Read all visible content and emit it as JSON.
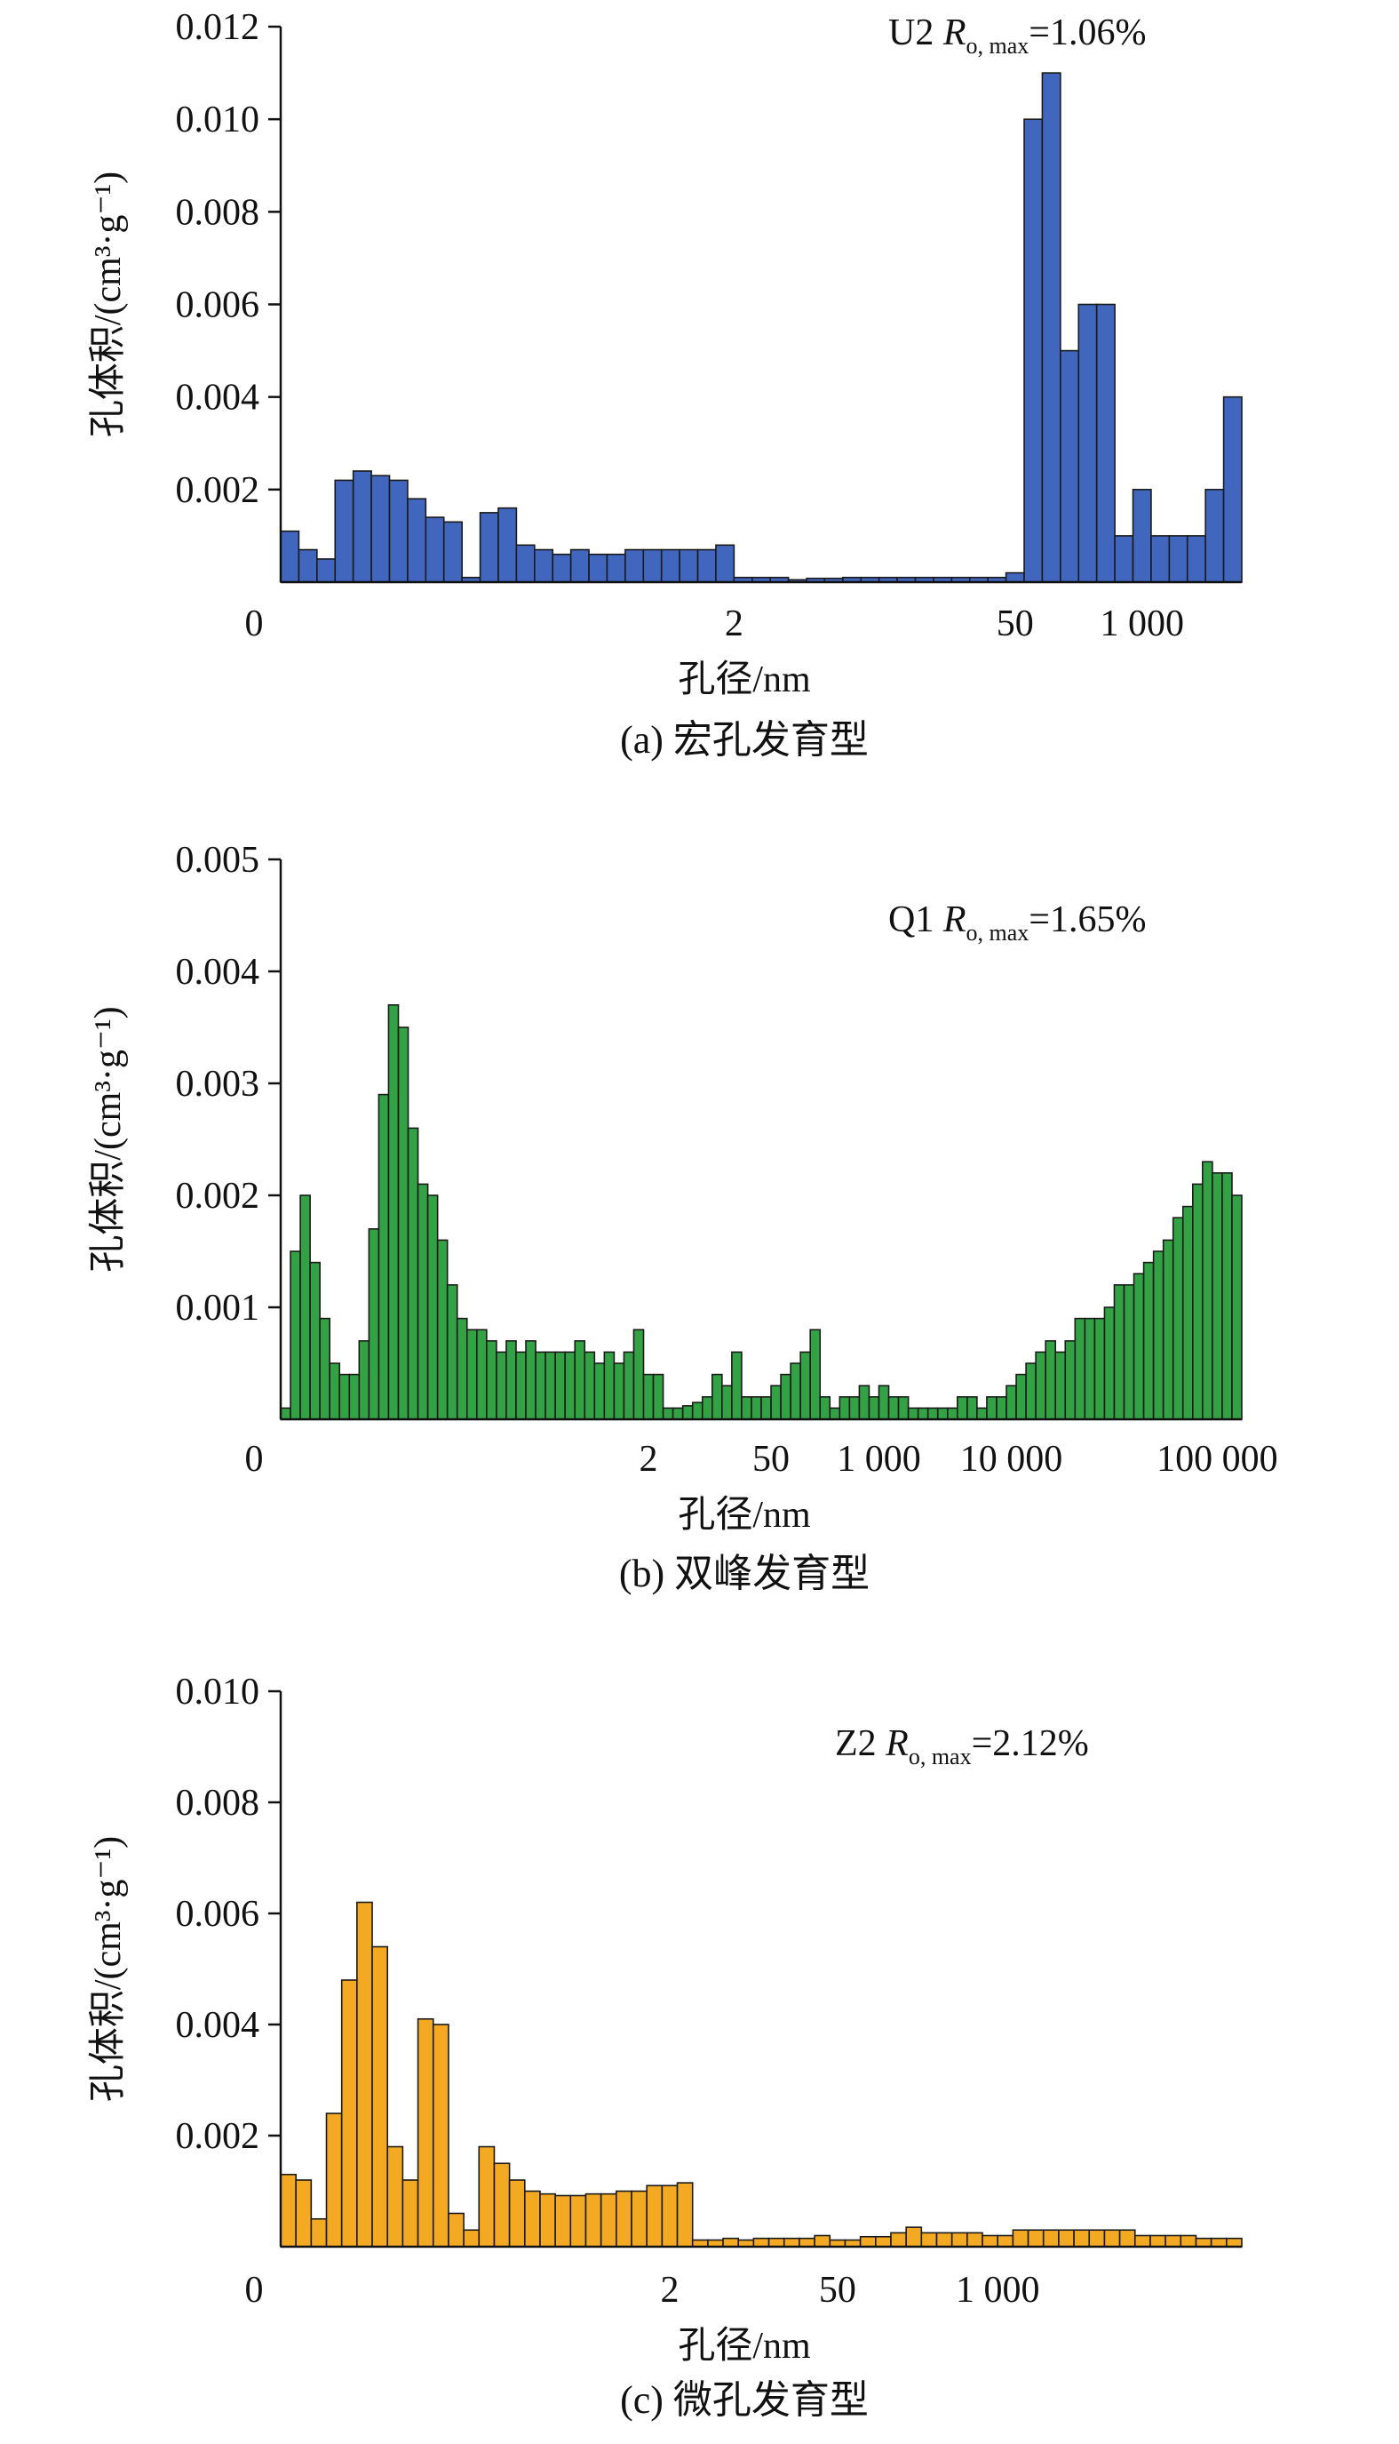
{
  "panels": [
    {
      "id": "a",
      "caption": "(a) 宏孔发育型",
      "ylabel": "孔体积/(cm³·g⁻¹)",
      "xlabel": "孔径/nm",
      "annotation": {
        "sample": "U2",
        "symbol": "R",
        "subscript": "o, max",
        "value": "=1.06%"
      },
      "color": "#4166bd"
    },
    {
      "id": "b",
      "caption": "(b) 双峰发育型",
      "ylabel": "孔体积/(cm³·g⁻¹)",
      "xlabel": "孔径/nm",
      "annotation": {
        "sample": "Q1",
        "symbol": "R",
        "subscript": "o, max",
        "value": "=1.65%"
      },
      "color": "#33a245"
    },
    {
      "id": "c",
      "caption": "(c) 微孔发育型",
      "ylabel": "孔体积/(cm³·g⁻¹)",
      "xlabel": "孔径/nm",
      "annotation": {
        "sample": "Z2",
        "symbol": "R",
        "subscript": "o, max",
        "value": "=2.12%"
      },
      "color": "#f3aa22"
    }
  ],
  "chart_data": [
    {
      "type": "bar",
      "xlabel": "孔径/nm",
      "ylabel": "孔体积/(cm³·g⁻¹)",
      "ylim": [
        0,
        0.012
      ],
      "y_ticks": [
        "0",
        "0.002",
        "0.004",
        "0.006",
        "0.008",
        "0.010",
        "0.012"
      ],
      "x_tick_labels": [
        {
          "bin": 0,
          "label": "0"
        },
        {
          "bin": 25,
          "label": "2"
        },
        {
          "bin": 40.5,
          "label": "50"
        },
        {
          "bin": 47.5,
          "label": "1 000"
        }
      ],
      "values": [
        0.0011,
        0.0007,
        0.0005,
        0.0022,
        0.0024,
        0.0023,
        0.0022,
        0.0018,
        0.0014,
        0.0013,
        0.0001,
        0.0015,
        0.0016,
        0.0008,
        0.0007,
        0.0006,
        0.0007,
        0.0006,
        0.0006,
        0.0007,
        0.0007,
        0.0007,
        0.0007,
        0.0007,
        0.0008,
        0.0001,
        0.0001,
        0.0001,
        5e-05,
        8e-05,
        8e-05,
        0.0001,
        0.0001,
        0.0001,
        0.0001,
        0.0001,
        0.0001,
        0.0001,
        0.0001,
        0.0001,
        0.0002,
        0.01,
        0.011,
        0.005,
        0.006,
        0.006,
        0.001,
        0.002,
        0.001,
        0.001,
        0.001,
        0.002,
        0.004
      ]
    },
    {
      "type": "bar",
      "xlabel": "孔径/nm",
      "ylabel": "孔体积/(cm³·g⁻¹)",
      "ylim": [
        0,
        0.005
      ],
      "y_ticks": [
        "0",
        "0.001",
        "0.002",
        "0.003",
        "0.004",
        "0.005"
      ],
      "x_tick_labels": [
        {
          "bin": 0,
          "label": "0"
        },
        {
          "bin": 37.5,
          "label": "2"
        },
        {
          "bin": 50,
          "label": "50"
        },
        {
          "bin": 61,
          "label": "1 000"
        },
        {
          "bin": 74.5,
          "label": "10 000"
        },
        {
          "bin": 95.5,
          "label": "100 000"
        }
      ],
      "values": [
        0.0001,
        0.0015,
        0.002,
        0.0014,
        0.0009,
        0.0005,
        0.0004,
        0.0004,
        0.0007,
        0.0017,
        0.0029,
        0.0037,
        0.0035,
        0.0026,
        0.0021,
        0.002,
        0.0016,
        0.0012,
        0.0009,
        0.0008,
        0.0008,
        0.0007,
        0.0006,
        0.0007,
        0.0006,
        0.0007,
        0.0006,
        0.0006,
        0.0006,
        0.0006,
        0.0007,
        0.0006,
        0.0005,
        0.0006,
        0.0005,
        0.0006,
        0.0008,
        0.0004,
        0.0004,
        0.0001,
        0.0001,
        0.00012,
        0.00015,
        0.0002,
        0.0004,
        0.0003,
        0.0006,
        0.0002,
        0.0002,
        0.0002,
        0.0003,
        0.0004,
        0.0005,
        0.0006,
        0.0008,
        0.0002,
        0.0001,
        0.0002,
        0.0002,
        0.0003,
        0.0002,
        0.0003,
        0.0002,
        0.0002,
        0.0001,
        0.0001,
        0.0001,
        0.0001,
        0.0001,
        0.0002,
        0.0002,
        0.0001,
        0.0002,
        0.0002,
        0.0003,
        0.0004,
        0.0005,
        0.0006,
        0.0007,
        0.0006,
        0.0007,
        0.0009,
        0.0009,
        0.0009,
        0.001,
        0.0012,
        0.0012,
        0.0013,
        0.0014,
        0.0015,
        0.0016,
        0.0018,
        0.0019,
        0.0021,
        0.0023,
        0.0022,
        0.0022,
        0.002
      ]
    },
    {
      "type": "bar",
      "xlabel": "孔径/nm",
      "ylabel": "孔体积/(cm³·g⁻¹)",
      "ylim": [
        0,
        0.01
      ],
      "y_ticks": [
        "0",
        "0.002",
        "0.004",
        "0.006",
        "0.008",
        "0.010"
      ],
      "x_tick_labels": [
        {
          "bin": 0,
          "label": "0"
        },
        {
          "bin": 25.5,
          "label": "2"
        },
        {
          "bin": 36.5,
          "label": "50"
        },
        {
          "bin": 47,
          "label": "1 000"
        }
      ],
      "values": [
        0.0013,
        0.0012,
        0.0005,
        0.0024,
        0.0048,
        0.0062,
        0.0054,
        0.0018,
        0.0012,
        0.0041,
        0.004,
        0.0006,
        0.0003,
        0.0018,
        0.0015,
        0.0012,
        0.001,
        0.00095,
        0.00092,
        0.00092,
        0.00095,
        0.00095,
        0.001,
        0.001,
        0.0011,
        0.0011,
        0.00115,
        0.00012,
        0.00012,
        0.00015,
        0.00012,
        0.00015,
        0.00015,
        0.00015,
        0.00015,
        0.0002,
        0.00012,
        0.00012,
        0.00018,
        0.00018,
        0.00025,
        0.00035,
        0.00025,
        0.00025,
        0.00025,
        0.00025,
        0.0002,
        0.0002,
        0.0003,
        0.0003,
        0.0003,
        0.0003,
        0.0003,
        0.0003,
        0.0003,
        0.0003,
        0.0002,
        0.0002,
        0.0002,
        0.0002,
        0.00015,
        0.00015,
        0.00015
      ]
    }
  ]
}
